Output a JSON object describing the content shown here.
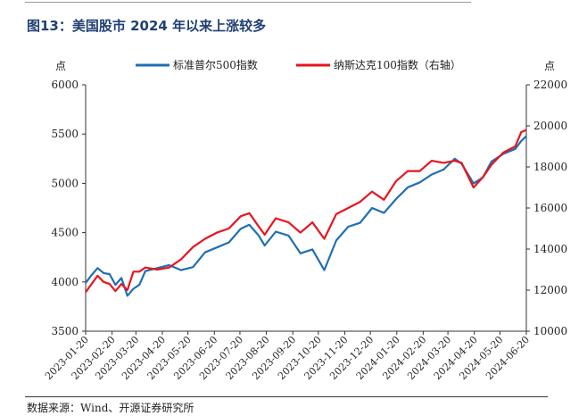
{
  "figure": {
    "title": "图13：美国股市 2024 年以来上涨较多",
    "source": "数据来源：Wind、开源证券研究所"
  },
  "chart_data": {
    "type": "line",
    "y_left_unit": "点",
    "y_right_unit": "点",
    "y_left_lim": [
      3500,
      6000
    ],
    "y_left_ticks": [
      "3500",
      "4000",
      "4500",
      "5000",
      "5500",
      "6000"
    ],
    "y_right_lim": [
      10000,
      22000
    ],
    "y_right_ticks": [
      "10000",
      "12000",
      "14000",
      "16000",
      "18000",
      "20000",
      "22000"
    ],
    "x_tick_labels": [
      "2023-01-20",
      "2023-02-20",
      "2023-03-20",
      "2023-04-20",
      "2023-05-20",
      "2023-06-20",
      "2023-07-20",
      "2023-08-20",
      "2023-09-20",
      "2023-10-20",
      "2023-11-20",
      "2023-12-20",
      "2024-01-20",
      "2024-02-20",
      "2024-03-20",
      "2024-04-20",
      "2024-05-20",
      "2024-06-20"
    ],
    "legend_position": "top-center",
    "series": [
      {
        "name": "标准普尔500指数",
        "axis": "left",
        "color": "#1f6fb4",
        "x": [
          "2023-01-20",
          "2023-01-27",
          "2023-02-03",
          "2023-02-10",
          "2023-02-17",
          "2023-02-24",
          "2023-03-03",
          "2023-03-10",
          "2023-03-17",
          "2023-03-24",
          "2023-03-31",
          "2023-04-14",
          "2023-04-28",
          "2023-05-12",
          "2023-05-26",
          "2023-06-09",
          "2023-06-23",
          "2023-07-07",
          "2023-07-21",
          "2023-07-31",
          "2023-08-11",
          "2023-08-18",
          "2023-08-31",
          "2023-09-15",
          "2023-09-29",
          "2023-10-13",
          "2023-10-27",
          "2023-11-10",
          "2023-11-24",
          "2023-12-08",
          "2023-12-22",
          "2024-01-05",
          "2024-01-19",
          "2024-02-02",
          "2024-02-16",
          "2024-03-01",
          "2024-03-15",
          "2024-03-28",
          "2024-04-05",
          "2024-04-19",
          "2024-04-30",
          "2024-05-10",
          "2024-05-24",
          "2024-06-07",
          "2024-06-14",
          "2024-06-20"
        ],
        "values": [
          3990,
          4070,
          4140,
          4090,
          4080,
          3970,
          4040,
          3860,
          3930,
          3970,
          4110,
          4140,
          4170,
          4120,
          4150,
          4300,
          4350,
          4400,
          4540,
          4580,
          4470,
          4370,
          4510,
          4470,
          4290,
          4330,
          4120,
          4420,
          4560,
          4600,
          4750,
          4700,
          4840,
          4960,
          5010,
          5090,
          5140,
          5250,
          5200,
          5000,
          5060,
          5220,
          5300,
          5350,
          5430,
          5480
        ]
      },
      {
        "name": "纳斯达克100指数（右轴）",
        "axis": "right",
        "color": "#e8141e",
        "x": [
          "2023-01-20",
          "2023-01-27",
          "2023-02-03",
          "2023-02-10",
          "2023-02-17",
          "2023-02-24",
          "2023-03-03",
          "2023-03-10",
          "2023-03-17",
          "2023-03-24",
          "2023-03-31",
          "2023-04-14",
          "2023-04-28",
          "2023-05-12",
          "2023-05-26",
          "2023-06-09",
          "2023-06-23",
          "2023-07-07",
          "2023-07-21",
          "2023-07-31",
          "2023-08-11",
          "2023-08-18",
          "2023-08-31",
          "2023-09-15",
          "2023-09-29",
          "2023-10-13",
          "2023-10-27",
          "2023-11-10",
          "2023-11-24",
          "2023-12-08",
          "2023-12-22",
          "2024-01-05",
          "2024-01-19",
          "2024-02-02",
          "2024-02-16",
          "2024-03-01",
          "2024-03-15",
          "2024-03-28",
          "2024-04-05",
          "2024-04-19",
          "2024-04-30",
          "2024-05-10",
          "2024-05-24",
          "2024-06-07",
          "2024-06-14",
          "2024-06-20"
        ],
        "values": [
          11900,
          12300,
          12700,
          12400,
          12300,
          11950,
          12300,
          12000,
          12900,
          12900,
          13100,
          13000,
          13100,
          13500,
          14100,
          14500,
          14800,
          15000,
          15600,
          15750,
          15100,
          14700,
          15500,
          15300,
          14800,
          15300,
          14500,
          15700,
          16000,
          16300,
          16800,
          16400,
          17300,
          17800,
          17800,
          18300,
          18200,
          18300,
          18200,
          17000,
          17500,
          18100,
          18700,
          19000,
          19700,
          19800
        ]
      }
    ]
  }
}
